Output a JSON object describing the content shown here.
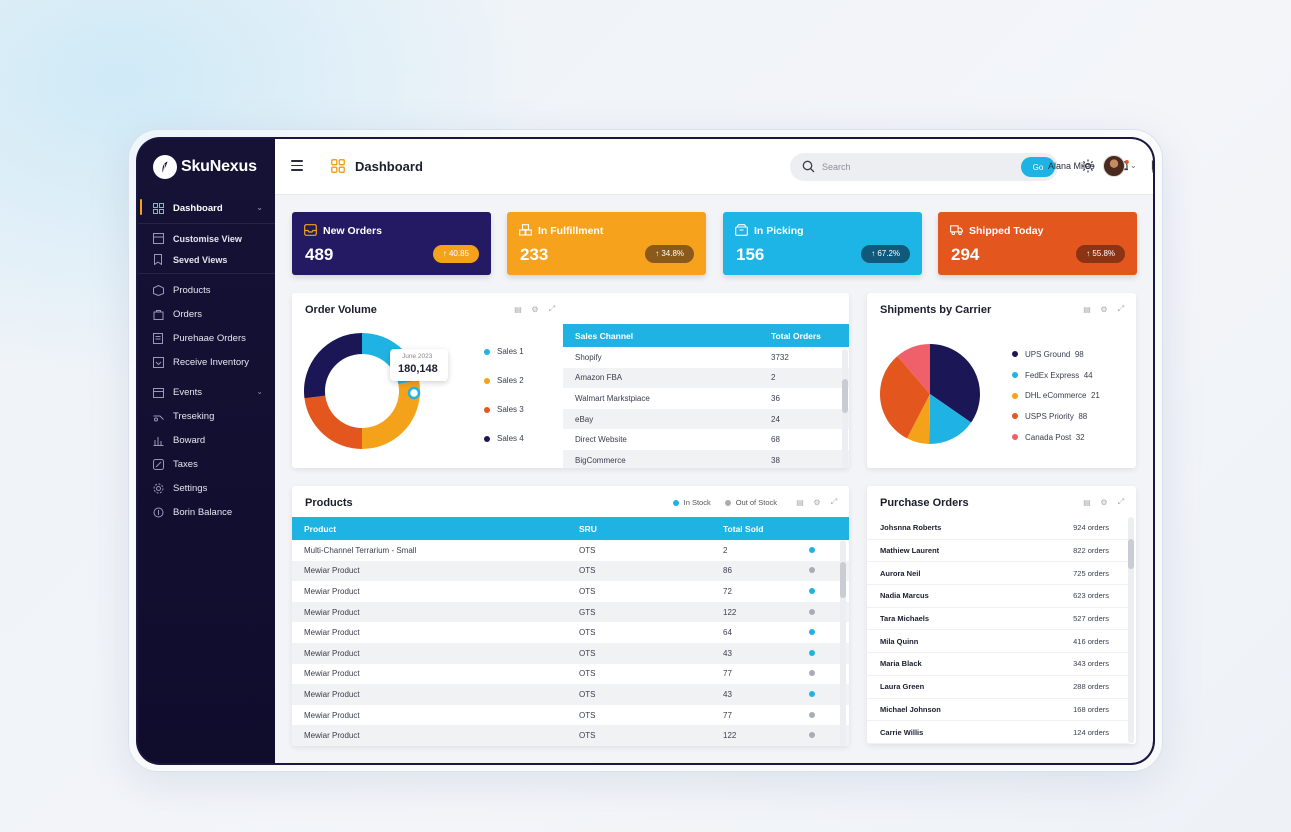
{
  "app": {
    "name": "SkuNexus"
  },
  "colors": {
    "accent": "#1fb3e3",
    "sidebar": "#130f33",
    "orange": "#f5a21b"
  },
  "sidebar": {
    "items": [
      {
        "label": "Dashboard",
        "icon": "grid-icon",
        "active": true
      },
      {
        "label": "Customise View",
        "icon": "layout-icon"
      },
      {
        "label": "Seved Views",
        "icon": "bookmark-icon"
      },
      {
        "label": "Products",
        "icon": "box-icon"
      },
      {
        "label": "Orders",
        "icon": "bag-icon"
      },
      {
        "label": "Purehaae Orders",
        "icon": "document-icon"
      },
      {
        "label": "Receive Inventory",
        "icon": "receive-icon"
      },
      {
        "label": "Events",
        "icon": "calendar-icon"
      },
      {
        "label": "Treseking",
        "icon": "tracking-icon"
      },
      {
        "label": "Boward",
        "icon": "bar-chart-icon"
      },
      {
        "label": "Taxes",
        "icon": "tax-icon"
      },
      {
        "label": "Settings",
        "icon": "gear-icon"
      },
      {
        "label": "Borin Balance",
        "icon": "balance-icon"
      }
    ]
  },
  "header": {
    "title": "Dashboard",
    "search_placeholder": "Search",
    "go_label": "Go",
    "user_name": "Alana Miles"
  },
  "stats": [
    {
      "title": "New Orders",
      "value": "489",
      "badge": "↑ 40.85",
      "bg": "#241a63",
      "badge_bg": "#f5a21b"
    },
    {
      "title": "In Fulfillment",
      "value": "233",
      "badge": "↑ 34.8%",
      "bg": "#f7a21c",
      "badge_bg": "#8a5a1c"
    },
    {
      "title": "In Picking",
      "value": "156",
      "badge": "↑ 67.2%",
      "bg": "#1db4e6",
      "badge_bg": "#10597a"
    },
    {
      "title": "Shipped Today",
      "value": "294",
      "badge": "↑ 55.8%",
      "bg": "#e3571f",
      "badge_bg": "#8c3315"
    }
  ],
  "order_volume": {
    "title": "Order Volume",
    "tooltip_label": "June 2023",
    "tooltip_value": "180,148",
    "legend": [
      {
        "label": "Sales 1",
        "color": "#1fb3e3"
      },
      {
        "label": "Sales 2",
        "color": "#f5a21b"
      },
      {
        "label": "Sales 3",
        "color": "#e3571f"
      },
      {
        "label": "Sales 4",
        "color": "#1b1655"
      }
    ],
    "table": {
      "headers": [
        "Sales Channel",
        "Total Orders"
      ],
      "rows": [
        [
          "Shopify",
          "3732"
        ],
        [
          "Amazon FBA",
          "2"
        ],
        [
          "Walmart Markstpiace",
          "36"
        ],
        [
          "eBay",
          "24"
        ],
        [
          "Direct Website",
          "68"
        ],
        [
          "BigCommerce",
          "38"
        ]
      ]
    }
  },
  "chart_data": [
    {
      "type": "pie",
      "title": "Order Volume",
      "categories": [
        "Sales 1",
        "Sales 2",
        "Sales 3",
        "Sales 4"
      ],
      "values": [
        22,
        28,
        23,
        27
      ],
      "colors": [
        "#1fb3e3",
        "#f5a21b",
        "#e3571f",
        "#1b1655"
      ],
      "donut": true,
      "legend": "right"
    },
    {
      "type": "pie",
      "title": "Shipments by Carrier",
      "categories": [
        "UPS Ground",
        "FedEx Express",
        "DHL eCommerce",
        "USPS Priority",
        "Canada Post"
      ],
      "values": [
        98,
        44,
        21,
        88,
        32
      ],
      "colors": [
        "#1b1655",
        "#1fb3e3",
        "#f5a21b",
        "#e3571f",
        "#f0606a"
      ],
      "legend": "right"
    }
  ],
  "carriers": {
    "title": "Shipments by Carrier",
    "legend": [
      {
        "label": "UPS Ground",
        "value": "98",
        "color": "#1b1655"
      },
      {
        "label": "FedEx Express",
        "value": "44",
        "color": "#1fb3e3"
      },
      {
        "label": "DHL eCommerce",
        "value": "21",
        "color": "#f5a21b"
      },
      {
        "label": "USPS Priority",
        "value": "88",
        "color": "#e3571f"
      },
      {
        "label": "Canada Post",
        "value": "32",
        "color": "#f0606a"
      }
    ]
  },
  "products": {
    "title": "Products",
    "legend": [
      {
        "label": "In Stock",
        "color": "#1fb3e3"
      },
      {
        "label": "Out of Stock",
        "color": "#a9acb5"
      }
    ],
    "headers": [
      "Product",
      "SRU",
      "Total Sold"
    ],
    "rows": [
      {
        "product": "Multi-Channel Terrarium - Small",
        "sku": "OTS",
        "sold": "2",
        "status": "in"
      },
      {
        "product": "Mewiar Product",
        "sku": "OTS",
        "sold": "86",
        "status": "out"
      },
      {
        "product": "Mewiar Product",
        "sku": "OTS",
        "sold": "72",
        "status": "in"
      },
      {
        "product": "Mewiar Product",
        "sku": "GTS",
        "sold": "122",
        "status": "out"
      },
      {
        "product": "Mewiar Product",
        "sku": "OTS",
        "sold": "64",
        "status": "in"
      },
      {
        "product": "Mewiar Product",
        "sku": "OTS",
        "sold": "43",
        "status": "in"
      },
      {
        "product": "Mewiar Product",
        "sku": "OTS",
        "sold": "77",
        "status": "out"
      },
      {
        "product": "Mewiar Product",
        "sku": "OTS",
        "sold": "43",
        "status": "in"
      },
      {
        "product": "Mewiar Product",
        "sku": "OTS",
        "sold": "77",
        "status": "out"
      },
      {
        "product": "Mewiar Product",
        "sku": "OTS",
        "sold": "122",
        "status": "out"
      }
    ]
  },
  "purchase_orders": {
    "title": "Purchase Orders",
    "rows": [
      {
        "name": "Johsnna Roberts",
        "count": "924 orders"
      },
      {
        "name": "Mathiew Laurent",
        "count": "822 orders"
      },
      {
        "name": "Aurora Neil",
        "count": "725 orders"
      },
      {
        "name": "Nadia Marcus",
        "count": "623 orders"
      },
      {
        "name": "Tara Michaels",
        "count": "527 orders"
      },
      {
        "name": "Mila Quinn",
        "count": "416 orders"
      },
      {
        "name": "Maria Black",
        "count": "343 orders"
      },
      {
        "name": "Laura Green",
        "count": "288 orders"
      },
      {
        "name": "Michael Johnson",
        "count": "168 orders"
      },
      {
        "name": "Carrie Willis",
        "count": "124 orders"
      }
    ]
  }
}
